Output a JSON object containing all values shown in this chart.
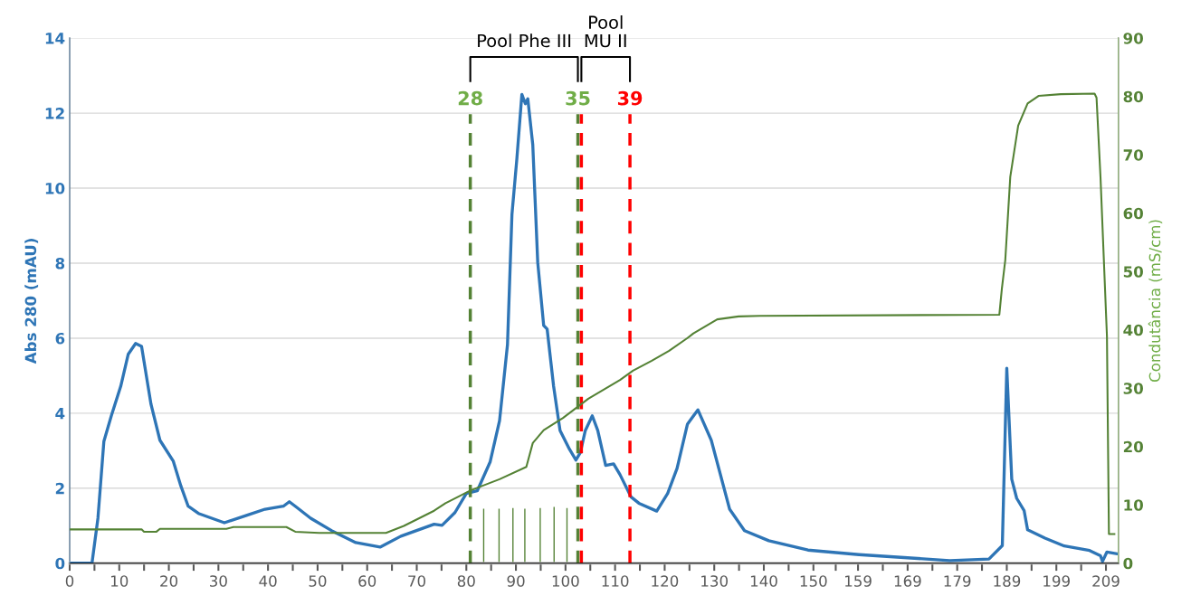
{
  "chart_data": {
    "type": "line",
    "ylabel": "Abs 280 (mAU)",
    "y2label": "Condutância (mS/cm)",
    "xlim": [
      0,
      211.5
    ],
    "ylim": [
      0,
      14
    ],
    "y2lim": [
      0,
      90
    ],
    "xticks": [
      0,
      {
        "value": 5,
        "label": null
      },
      10,
      {
        "value": 15,
        "label": null
      },
      20,
      {
        "value": 25,
        "label": null
      },
      30,
      {
        "value": 35,
        "label": null
      },
      40,
      {
        "value": 45,
        "label": null
      },
      50,
      {
        "value": 55,
        "label": null
      },
      60,
      {
        "value": 65,
        "label": null
      },
      70,
      {
        "value": 75,
        "label": null
      },
      80,
      {
        "value": 85,
        "label": null
      },
      90,
      {
        "value": 95,
        "label": null
      },
      100,
      {
        "value": 105,
        "label": null
      },
      110,
      {
        "value": 115,
        "label": null
      },
      120,
      {
        "value": 125,
        "label": null
      },
      130,
      {
        "value": 135,
        "label": null
      },
      140,
      {
        "value": 145,
        "label": null
      },
      150,
      {
        "value": 154.5,
        "label": null
      },
      159,
      {
        "value": 164,
        "label": null
      },
      169,
      {
        "value": 174,
        "label": null
      },
      179,
      {
        "value": 184,
        "label": null
      },
      189,
      {
        "value": 194,
        "label": null
      },
      199,
      {
        "value": 204,
        "label": null
      },
      209
    ],
    "yticks": [
      0,
      2,
      4,
      6,
      8,
      10,
      12,
      14
    ],
    "y2ticks": [
      0,
      10,
      20,
      30,
      40,
      50,
      60,
      70,
      80,
      90
    ],
    "grid": "y",
    "series": [
      {
        "color": "#2e75b6",
        "x": [
          0,
          4.5,
          5.7,
          6.9,
          8.4,
          10.3,
          11.8,
          13.3,
          14.5,
          16.4,
          18.2,
          20.9,
          22.4,
          23.9,
          26.1,
          31.2,
          35.8,
          39.4,
          43.1,
          44.3,
          45.5,
          48.6,
          52.8,
          57.7,
          62.6,
          66.8,
          73.5,
          75.1,
          77.7,
          80,
          82.2,
          84.8,
          86.7,
          88.3,
          89.2,
          90.2,
          91.2,
          91.9,
          92.4,
          93.4,
          94.4,
          95.6,
          96.3,
          97.6,
          98.9,
          100.8,
          102.1,
          103,
          104,
          105.4,
          106.5,
          108.1,
          109.7,
          111,
          113.2,
          114.8,
          118.4,
          120.6,
          122.5,
          124.6,
          126.7,
          129.4,
          133.1,
          136.1,
          141,
          148.9,
          159.2,
          168.3,
          177.5,
          185.4,
          188.1,
          189,
          190,
          191,
          192.5,
          193.2,
          196.7,
          200.6,
          205.7,
          207.9,
          208.3,
          209.2,
          211.3
        ],
        "values": [
          0,
          0,
          1.2,
          3.25,
          3.93,
          4.72,
          5.57,
          5.86,
          5.78,
          4.24,
          3.28,
          2.72,
          2.07,
          1.52,
          1.32,
          1.08,
          1.28,
          1.44,
          1.52,
          1.64,
          1.52,
          1.2,
          0.87,
          0.55,
          0.43,
          0.72,
          1.04,
          1.01,
          1.35,
          1.86,
          1.93,
          2.7,
          3.8,
          5.83,
          9.3,
          10.8,
          12.5,
          12.25,
          12.38,
          11.16,
          8.02,
          6.34,
          6.24,
          4.72,
          3.54,
          3.04,
          2.75,
          2.95,
          3.54,
          3.93,
          3.54,
          2.61,
          2.65,
          2.36,
          1.77,
          1.6,
          1.39,
          1.86,
          2.53,
          3.71,
          4.09,
          3.28,
          1.44,
          0.87,
          0.6,
          0.35,
          0.23,
          0.15,
          0.07,
          0.11,
          0.47,
          5.2,
          2.24,
          1.73,
          1.4,
          0.89,
          0.67,
          0.46,
          0.34,
          0.2,
          0.05,
          0.3,
          0.25
        ]
      },
      {
        "axis": "y2",
        "color": "#548235",
        "x": [
          0,
          14.5,
          15,
          17.5,
          18.2,
          31.6,
          33,
          43.7,
          45.5,
          50.3,
          63.8,
          67.4,
          73.5,
          75.8,
          80.9,
          86.7,
          92.1,
          93.4,
          95.6,
          99.5,
          104.6,
          111,
          113.6,
          117.4,
          120.9,
          124.6,
          125.8,
          130.6,
          134.9,
          139.2,
          187.5,
          188,
          188.7,
          189.7,
          191.3,
          193.2,
          195.4,
          199.9,
          206.7,
          207.1,
          207.9,
          209.2,
          209.6,
          210.7
        ],
        "values": [
          5.8,
          5.8,
          5.4,
          5.4,
          5.9,
          5.9,
          6.2,
          6.2,
          5.4,
          5.2,
          5.2,
          6.4,
          9,
          10.3,
          12.5,
          14.4,
          16.5,
          20.6,
          22.8,
          24.9,
          28.2,
          31.4,
          33,
          34.7,
          36.4,
          38.6,
          39.4,
          41.8,
          42.3,
          42.4,
          42.6,
          47,
          52,
          66.2,
          75,
          78.8,
          80.1,
          80.4,
          80.5,
          79.8,
          66.2,
          38.9,
          5,
          5
        ]
      },
      {
        "type": "bar",
        "color": "#548235",
        "x": [
          83.5,
          86.6,
          89.4,
          91.8,
          94.9,
          97.7,
          100.3
        ],
        "values": [
          1.45,
          1.45,
          1.47,
          1.45,
          1.47,
          1.5,
          1.47
        ]
      }
    ],
    "ref_lines": [
      {
        "axis": "x",
        "value": 80.8,
        "color": "#548235",
        "line_style": "dashed"
      },
      {
        "axis": "x",
        "value": 102.5,
        "color": "#548235",
        "line_style": "dashed"
      },
      {
        "axis": "x",
        "value": 103.2,
        "color": "#ff0000",
        "line_style": "dashed"
      },
      {
        "axis": "x",
        "value": 113,
        "color": "#ff0000",
        "line_style": "dashed"
      }
    ],
    "annotations": [
      "Pool Phe III",
      "Pool\nMU II",
      "28",
      "35",
      "39"
    ]
  }
}
